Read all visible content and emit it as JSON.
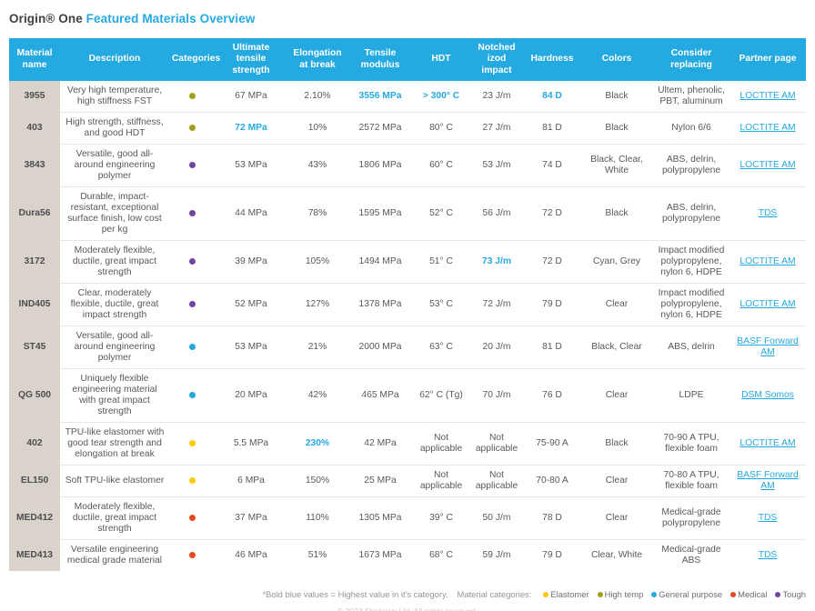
{
  "page": {
    "title_prefix": "Origin® One ",
    "title_highlight": "Featured Materials Overview"
  },
  "table": {
    "columns": [
      {
        "key": "name",
        "label": "Material name"
      },
      {
        "key": "description",
        "label": "Description"
      },
      {
        "key": "category",
        "label": "Categories"
      },
      {
        "key": "uts",
        "label": "Ultimate tensile strength"
      },
      {
        "key": "elongation",
        "label": "Elongation at break"
      },
      {
        "key": "modulus",
        "label": "Tensile modulus"
      },
      {
        "key": "hdt",
        "label": "HDT"
      },
      {
        "key": "izod",
        "label": "Notched izod impact"
      },
      {
        "key": "hardness",
        "label": "Hardness"
      },
      {
        "key": "colors",
        "label": "Colors"
      },
      {
        "key": "replacing",
        "label": "Consider replacing"
      },
      {
        "key": "partner",
        "label": "Partner page"
      }
    ],
    "rows": [
      {
        "name": "3955",
        "description": "Very high temperature, high stiffness FST",
        "category": "high_temp",
        "uts": "67 MPa",
        "elongation": "2.10%",
        "modulus": "3556 MPa",
        "hdt": "> 300° C",
        "izod": "23 J/m",
        "hardness": "84 D",
        "highlights": [
          "modulus",
          "hdt",
          "hardness"
        ],
        "colors": "Black",
        "replacing": "Ultem, phenolic, PBT, aluminum",
        "partner": "LOCTITE AM"
      },
      {
        "name": "403",
        "description": "High strength, stiffness, and good HDT",
        "category": "high_temp",
        "uts": "72 MPa",
        "elongation": "10%",
        "modulus": "2572 MPa",
        "hdt": "80° C",
        "izod": "27 J/m",
        "hardness": "81 D",
        "highlights": [
          "uts"
        ],
        "colors": "Black",
        "replacing": "Nylon 6/6",
        "partner": "LOCTITE AM"
      },
      {
        "name": "3843",
        "description": "Versatile, good all-around engineering polymer",
        "category": "tough",
        "uts": "53 MPa",
        "elongation": "43%",
        "modulus": "1806 MPa",
        "hdt": "60° C",
        "izod": "53 J/m",
        "hardness": "74 D",
        "highlights": [],
        "colors": "Black, Clear, White",
        "replacing": "ABS, delrin, polypropylene",
        "partner": "LOCTITE AM"
      },
      {
        "name": "Dura56",
        "description": "Durable, impact-resistant, exceptional surface finish, low cost per kg",
        "category": "tough",
        "uts": "44 MPa",
        "elongation": "78%",
        "modulus": "1595 MPa",
        "hdt": "52° C",
        "izod": "56 J/m",
        "hardness": "72 D",
        "highlights": [],
        "colors": "Black",
        "replacing": "ABS, delrin, polypropylene",
        "partner": "TDS"
      },
      {
        "name": "3172",
        "description": "Moderately flexible, ductile, great impact strength",
        "category": "tough",
        "uts": "39 MPa",
        "elongation": "105%",
        "modulus": "1494 MPa",
        "hdt": "51° C",
        "izod": "73 J/m",
        "hardness": "72 D",
        "highlights": [
          "izod"
        ],
        "colors": "Cyan, Grey",
        "replacing": "Impact modified polypropylene, nylon 6, HDPE",
        "partner": "LOCTITE AM"
      },
      {
        "name": "IND405",
        "description": "Clear, moderately flexible, ductile, great impact strength",
        "category": "tough",
        "uts": "52 MPa",
        "elongation": "127%",
        "modulus": "1378 MPa",
        "hdt": "53° C",
        "izod": "72 J/m",
        "hardness": "79 D",
        "highlights": [],
        "colors": "Clear",
        "replacing": "Impact modified polypropylene, nylon 6, HDPE",
        "partner": "LOCTITE AM"
      },
      {
        "name": "ST45",
        "description": "Versatile, good all-around engineering polymer",
        "category": "general",
        "uts": "53 MPa",
        "elongation": "21%",
        "modulus": "2000 MPa",
        "hdt": "63° C",
        "izod": "20 J/m",
        "hardness": "81 D",
        "highlights": [],
        "colors": "Black, Clear",
        "replacing": "ABS, delrin",
        "partner": "BASF Forward AM"
      },
      {
        "name": "QG 500",
        "description": "Uniquely flexible engineering material with great impact strength",
        "category": "general",
        "uts": "20 MPa",
        "elongation": "42%",
        "modulus": "465 MPa",
        "hdt": "62° C (Tg)",
        "izod": "70 J/m",
        "hardness": "76 D",
        "highlights": [],
        "colors": "Clear",
        "replacing": "LDPE",
        "partner": "DSM Somos"
      },
      {
        "name": "402",
        "description": "TPU-like elastomer with good tear strength and elongation at break",
        "category": "elastomer",
        "uts": "5.5 MPa",
        "elongation": "230%",
        "modulus": "42 MPa",
        "hdt": "Not applicable",
        "izod": "Not applicable",
        "hardness": "75-90 A",
        "highlights": [
          "elongation"
        ],
        "colors": "Black",
        "replacing": "70-90 A TPU, flexible foam",
        "partner": "LOCTITE AM"
      },
      {
        "name": "EL150",
        "description": "Soft TPU-like elastomer",
        "category": "elastomer",
        "uts": "6 MPa",
        "elongation": "150%",
        "modulus": "25 MPa",
        "hdt": "Not applicable",
        "izod": "Not applicable",
        "hardness": "70-80 A",
        "highlights": [],
        "colors": "Clear",
        "replacing": "70-80 A TPU, flexible foam",
        "partner": "BASF Forward AM"
      },
      {
        "name": "MED412",
        "description": "Moderately flexible, ductile, great impact strength",
        "category": "medical",
        "uts": "37 MPa",
        "elongation": "110%",
        "modulus": "1305 MPa",
        "hdt": "39° C",
        "izod": "50 J/m",
        "hardness": "78 D",
        "highlights": [],
        "colors": "Clear",
        "replacing": "Medical-grade polypropylene",
        "partner": "TDS"
      },
      {
        "name": "MED413",
        "description": "Versatile engineering medical grade material",
        "category": "medical",
        "uts": "46 MPa",
        "elongation": "51%",
        "modulus": "1673 MPa",
        "hdt": "68° C",
        "izod": "59 J/m",
        "hardness": "79 D",
        "highlights": [],
        "colors": "Clear, White",
        "replacing": "Medical-grade ABS",
        "partner": "TDS"
      }
    ]
  },
  "legend": {
    "footnote": "*Bold blue values = Highest value in it's category.",
    "title": "Material categories:",
    "categories": [
      {
        "key": "elastomer",
        "label": "Elastomer",
        "color": "#FFCB05"
      },
      {
        "key": "high_temp",
        "label": "High temp",
        "color": "#A2A015"
      },
      {
        "key": "general",
        "label": "General purpose",
        "color": "#24A9E1"
      },
      {
        "key": "medical",
        "label": "Medical",
        "color": "#E6491E"
      },
      {
        "key": "tough",
        "label": "Tough",
        "color": "#7243A0"
      }
    ]
  },
  "footer": {
    "copyright_partial": "© 2023 Stratasys Ltd. All rights reserved."
  },
  "theme": {
    "header_blue": "#24A9E1",
    "name_column_beige": "#D9D3CB",
    "highlight_blue": "#24A9E1"
  }
}
